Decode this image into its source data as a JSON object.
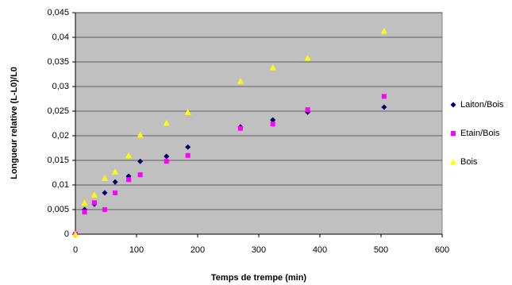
{
  "chart_data": {
    "type": "scatter",
    "x_label": "Temps de trempe (min)",
    "y_label": "Longueur relative (L-L0)/L0",
    "x": [
      0,
      15,
      31,
      48,
      65,
      87,
      106,
      149,
      184,
      270,
      323,
      380,
      505
    ],
    "series": [
      {
        "name": "Laiton/Bois",
        "color": "#000066",
        "marker": "diamond",
        "values": [
          0,
          0.005,
          0.0061,
          0.0084,
          0.0106,
          0.0118,
          0.0148,
          0.0158,
          0.0177,
          0.0218,
          0.0232,
          0.0248,
          0.0258
        ]
      },
      {
        "name": "Etain/Bois",
        "color": "#ff00ff",
        "marker": "square",
        "values": [
          0,
          0.0045,
          0.0064,
          0.005,
          0.0084,
          0.0111,
          0.0121,
          0.0148,
          0.016,
          0.0215,
          0.0224,
          0.0253,
          0.028
        ]
      },
      {
        "name": "Bois",
        "color": "#ffff00",
        "marker": "triangle",
        "values": [
          0,
          0.0064,
          0.008,
          0.0114,
          0.0127,
          0.016,
          0.0202,
          0.0226,
          0.0248,
          0.0311,
          0.0339,
          0.0358,
          0.0413
        ]
      }
    ],
    "xlim": [
      0,
      600
    ],
    "xticks": [
      0,
      100,
      200,
      300,
      400,
      500,
      600
    ],
    "ylim": [
      0,
      0.045
    ],
    "yticks": [
      0,
      {
        "value": 0.005,
        "label": "0,005"
      },
      {
        "value": 0.01,
        "label": "0,01"
      },
      {
        "value": 0.015,
        "label": "0,015"
      },
      {
        "value": 0.02,
        "label": "0,02"
      },
      {
        "value": 0.025,
        "label": "0,025"
      },
      {
        "value": 0.03,
        "label": "0,03"
      },
      {
        "value": 0.035,
        "label": "0,035"
      },
      {
        "value": 0.04,
        "label": "0,04"
      },
      {
        "value": 0.045,
        "label": "0,045"
      }
    ],
    "grid": true,
    "plot_background": "#c0c0c0",
    "legend": "right"
  }
}
